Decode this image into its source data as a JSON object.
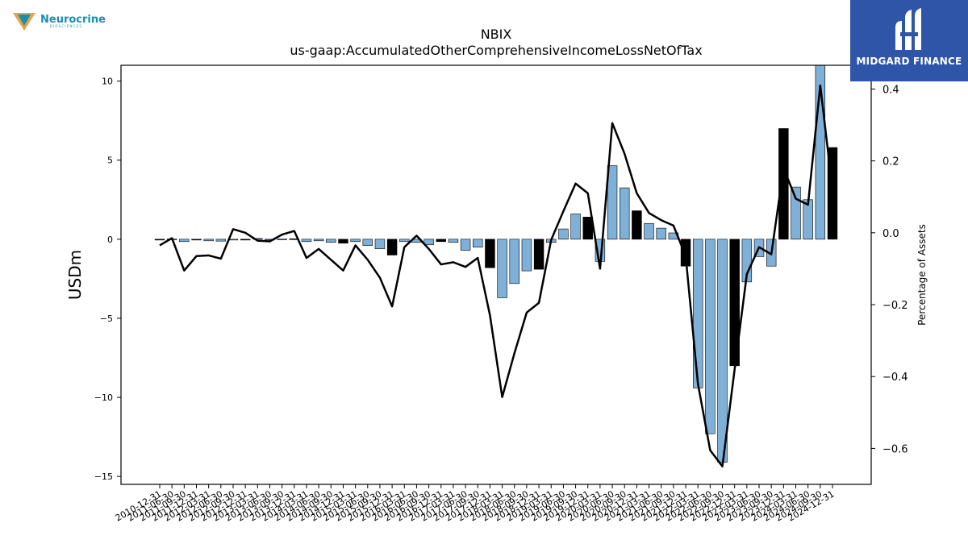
{
  "logos": {
    "left_brand": "Neurocrine",
    "left_brand_sub": "BIOSCIENCES",
    "right_brand": "MIDGARD FINANCE"
  },
  "colors": {
    "bar_positive_change": "#7fb0d8",
    "bar_q4": "#000000",
    "line": "#000000",
    "right_logo_bg": "#2f55a8"
  },
  "chart_data": {
    "type": "bar",
    "title": "NBIX",
    "subtitle": "us-gaap:AccumulatedOtherComprehensiveIncomeLossNetOfTax",
    "ylabel": "USDm",
    "y2label": "Percentage of Assets",
    "ylim": [
      -15.5,
      11
    ],
    "y2lim": [
      -0.7,
      0.466
    ],
    "yticks": [
      10,
      5,
      0,
      -5,
      -10,
      -15
    ],
    "y2ticks": [
      0.4,
      0.2,
      0.0,
      -0.2,
      -0.4,
      -0.6
    ],
    "categories": [
      "2010-12-31",
      "2011-06-30",
      "2011-09-30",
      "2011-12-31",
      "2012-03-31",
      "2012-06-30",
      "2012-09-30",
      "2012-12-31",
      "2013-03-31",
      "2013-06-30",
      "2013-09-30",
      "2013-12-31",
      "2014-03-31",
      "2014-06-30",
      "2014-09-30",
      "2014-12-31",
      "2015-03-31",
      "2015-06-30",
      "2015-09-30",
      "2015-12-31",
      "2016-03-31",
      "2016-06-30",
      "2016-09-30",
      "2016-12-31",
      "2017-03-31",
      "2017-06-30",
      "2017-09-30",
      "2017-12-31",
      "2018-03-31",
      "2018-06-30",
      "2018-09-30",
      "2018-12-31",
      "2019-03-31",
      "2019-06-30",
      "2019-09-30",
      "2019-12-31",
      "2020-03-31",
      "2020-06-30",
      "2020-09-30",
      "2020-12-31",
      "2021-03-31",
      "2021-06-30",
      "2021-09-30",
      "2021-12-31",
      "2022-03-31",
      "2022-06-30",
      "2022-09-30",
      "2022-12-31",
      "2023-03-31",
      "2023-06-30",
      "2023-09-30",
      "2023-12-31",
      "2024-03-31",
      "2024-06-30",
      "2024-09-30",
      "2024-12-31"
    ],
    "visible_tick_labels": [
      "2010-12-31",
      "2011-06-30",
      "2011-09-30",
      "2011-12-31",
      "2012-03-31",
      "2012-06-30",
      "2012-09-30",
      "2012-12-31",
      "2013-03-31",
      "2013-06-30",
      "2013-09-30",
      "2013-12-31",
      "2014-03-31",
      "2014-06-30",
      "2014-09-30",
      "2014-12-31",
      "2015-03-31",
      "2015-06-30",
      "2015-09-30",
      "2015-12-31",
      "2016-03-31",
      "2016-06-30",
      "2016-09-30",
      "2016-12-31",
      "2017-03-31",
      "2017-06-30",
      "2017-09-30",
      "2017-12-31",
      "2018-03-31",
      "2018-06-30",
      "2018-09-30",
      "2018-12-31",
      "2019-03-31",
      "2019-06-30",
      "2019-09-30",
      "2019-12-31",
      "2020-03-31",
      "2020-06-30",
      "2020-09-30",
      "2020-12-31",
      "2021-03-31",
      "2021-06-30",
      "2021-09-30",
      "2021-12-31",
      "2022-03-31",
      "2022-06-30",
      "2022-09-30",
      "2022-12-31",
      "2023-03-31",
      "2023-06-30",
      "2023-09-30",
      "2023-12-31",
      "2024-03-31",
      "2024-06-30",
      "2024-09-30",
      "2024-12-31"
    ],
    "series": [
      {
        "kind": "bar",
        "axis": "left",
        "values": [
          -0.05,
          0.02,
          -0.15,
          -0.05,
          -0.1,
          -0.12,
          0.0,
          0.0,
          0.05,
          -0.05,
          0.02,
          0.03,
          -0.15,
          -0.1,
          -0.2,
          -0.25,
          -0.15,
          -0.4,
          -0.6,
          -1.0,
          -0.15,
          -0.2,
          -0.35,
          -0.15,
          -0.2,
          -0.7,
          -0.5,
          -1.8,
          -3.7,
          -2.8,
          -2.0,
          -1.9,
          -0.2,
          0.65,
          1.6,
          1.4,
          -1.4,
          4.65,
          3.25,
          1.8,
          1.0,
          0.7,
          0.4,
          -1.7,
          -9.4,
          -12.3,
          -14.1,
          -8.0,
          -2.7,
          -1.1,
          -1.7,
          7.0,
          3.3,
          2.5,
          11.0,
          5.8
        ],
        "q4_black": [
          true,
          false,
          false,
          true,
          false,
          false,
          false,
          true,
          false,
          false,
          false,
          true,
          false,
          false,
          false,
          true,
          false,
          false,
          false,
          true,
          false,
          false,
          false,
          true,
          false,
          false,
          false,
          true,
          false,
          false,
          false,
          true,
          false,
          false,
          false,
          true,
          false,
          false,
          false,
          true,
          false,
          false,
          false,
          true,
          false,
          false,
          false,
          true,
          false,
          false,
          false,
          true,
          false,
          false,
          false,
          true
        ]
      },
      {
        "kind": "line",
        "axis": "right",
        "values": [
          -0.035,
          -0.015,
          -0.105,
          -0.065,
          -0.063,
          -0.072,
          0.01,
          0.0,
          -0.022,
          -0.024,
          -0.005,
          0.005,
          -0.07,
          -0.045,
          -0.075,
          -0.105,
          -0.035,
          -0.075,
          -0.125,
          -0.205,
          -0.04,
          -0.008,
          -0.045,
          -0.088,
          -0.082,
          -0.095,
          -0.07,
          -0.23,
          -0.457,
          -0.335,
          -0.222,
          -0.195,
          -0.02,
          0.06,
          0.137,
          0.11,
          -0.1,
          0.305,
          0.22,
          0.11,
          0.055,
          0.035,
          0.02,
          -0.065,
          -0.42,
          -0.605,
          -0.65,
          -0.38,
          -0.115,
          -0.04,
          -0.06,
          0.18,
          0.095,
          0.078,
          0.41,
          0.12
        ]
      }
    ],
    "grid": false,
    "legend": "none"
  }
}
